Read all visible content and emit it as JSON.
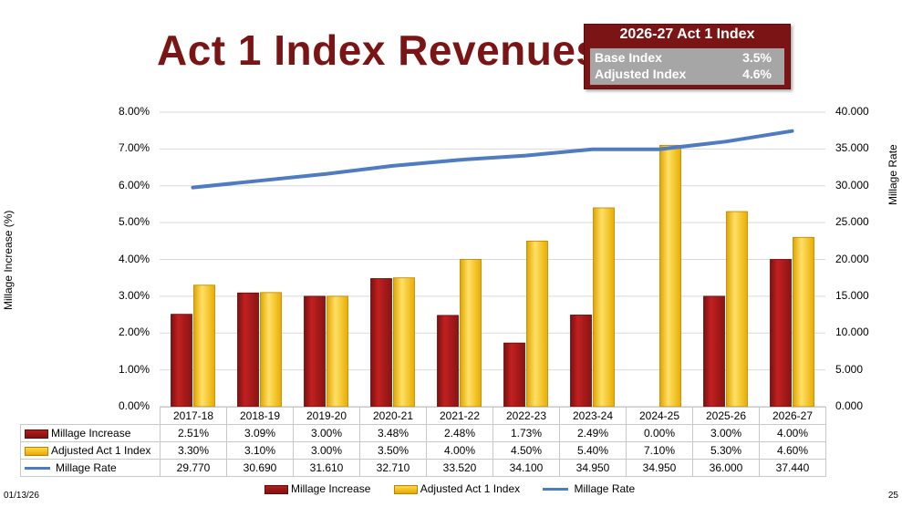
{
  "title": "Act 1 Index Revenues",
  "index_box": {
    "title": "2026-27 Act 1 Index",
    "rows": [
      {
        "label": "Base Index",
        "value": "3.5%"
      },
      {
        "label": "Adjusted Index",
        "value": "4.6%"
      }
    ]
  },
  "chart_data": {
    "type": "bar",
    "title": "Act 1 Index Revenues",
    "categories": [
      "2017-18",
      "2018-19",
      "2019-20",
      "2020-21",
      "2021-22",
      "2022-23",
      "2023-24",
      "2024-25",
      "2025-26",
      "2026-27"
    ],
    "series": [
      {
        "name": "Millage Increase",
        "type": "bar",
        "axis": "left",
        "color": "#9e1a1a",
        "values": [
          2.51,
          3.09,
          3.0,
          3.48,
          2.48,
          1.73,
          2.49,
          0.0,
          3.0,
          4.0
        ],
        "labels": [
          "2.51%",
          "3.09%",
          "3.00%",
          "3.48%",
          "2.48%",
          "1.73%",
          "2.49%",
          "0.00%",
          "3.00%",
          "4.00%"
        ]
      },
      {
        "name": "Adjusted Act 1 Index",
        "type": "bar",
        "axis": "left",
        "color": "#f2be15",
        "values": [
          3.3,
          3.1,
          3.0,
          3.5,
          4.0,
          4.5,
          5.4,
          7.1,
          5.3,
          4.6
        ],
        "labels": [
          "3.30%",
          "3.10%",
          "3.00%",
          "3.50%",
          "4.00%",
          "4.50%",
          "5.40%",
          "7.10%",
          "5.30%",
          "4.60%"
        ]
      },
      {
        "name": "Millage Rate",
        "type": "line",
        "axis": "right",
        "color": "#4f7bc0",
        "values": [
          29.77,
          30.69,
          31.61,
          32.71,
          33.52,
          34.1,
          34.95,
          34.95,
          36.0,
          37.44
        ],
        "labels": [
          "29.770",
          "30.690",
          "31.610",
          "32.710",
          "33.520",
          "34.100",
          "34.950",
          "34.950",
          "36.000",
          "37.440"
        ]
      }
    ],
    "ylabel": "Millage Increase (%)",
    "y2label": "Millage Rate",
    "ylim": [
      0,
      8
    ],
    "y2lim": [
      0,
      40
    ],
    "yticks": [
      "0.00%",
      "1.00%",
      "2.00%",
      "3.00%",
      "4.00%",
      "5.00%",
      "6.00%",
      "7.00%",
      "8.00%"
    ],
    "y2ticks": [
      "0.000",
      "5.000",
      "10.000",
      "15.000",
      "20.000",
      "25.000",
      "30.000",
      "35.000",
      "40.000"
    ],
    "grid": true,
    "legend": "bottom"
  },
  "footer": {
    "date": "01/13/26",
    "page": "25"
  }
}
